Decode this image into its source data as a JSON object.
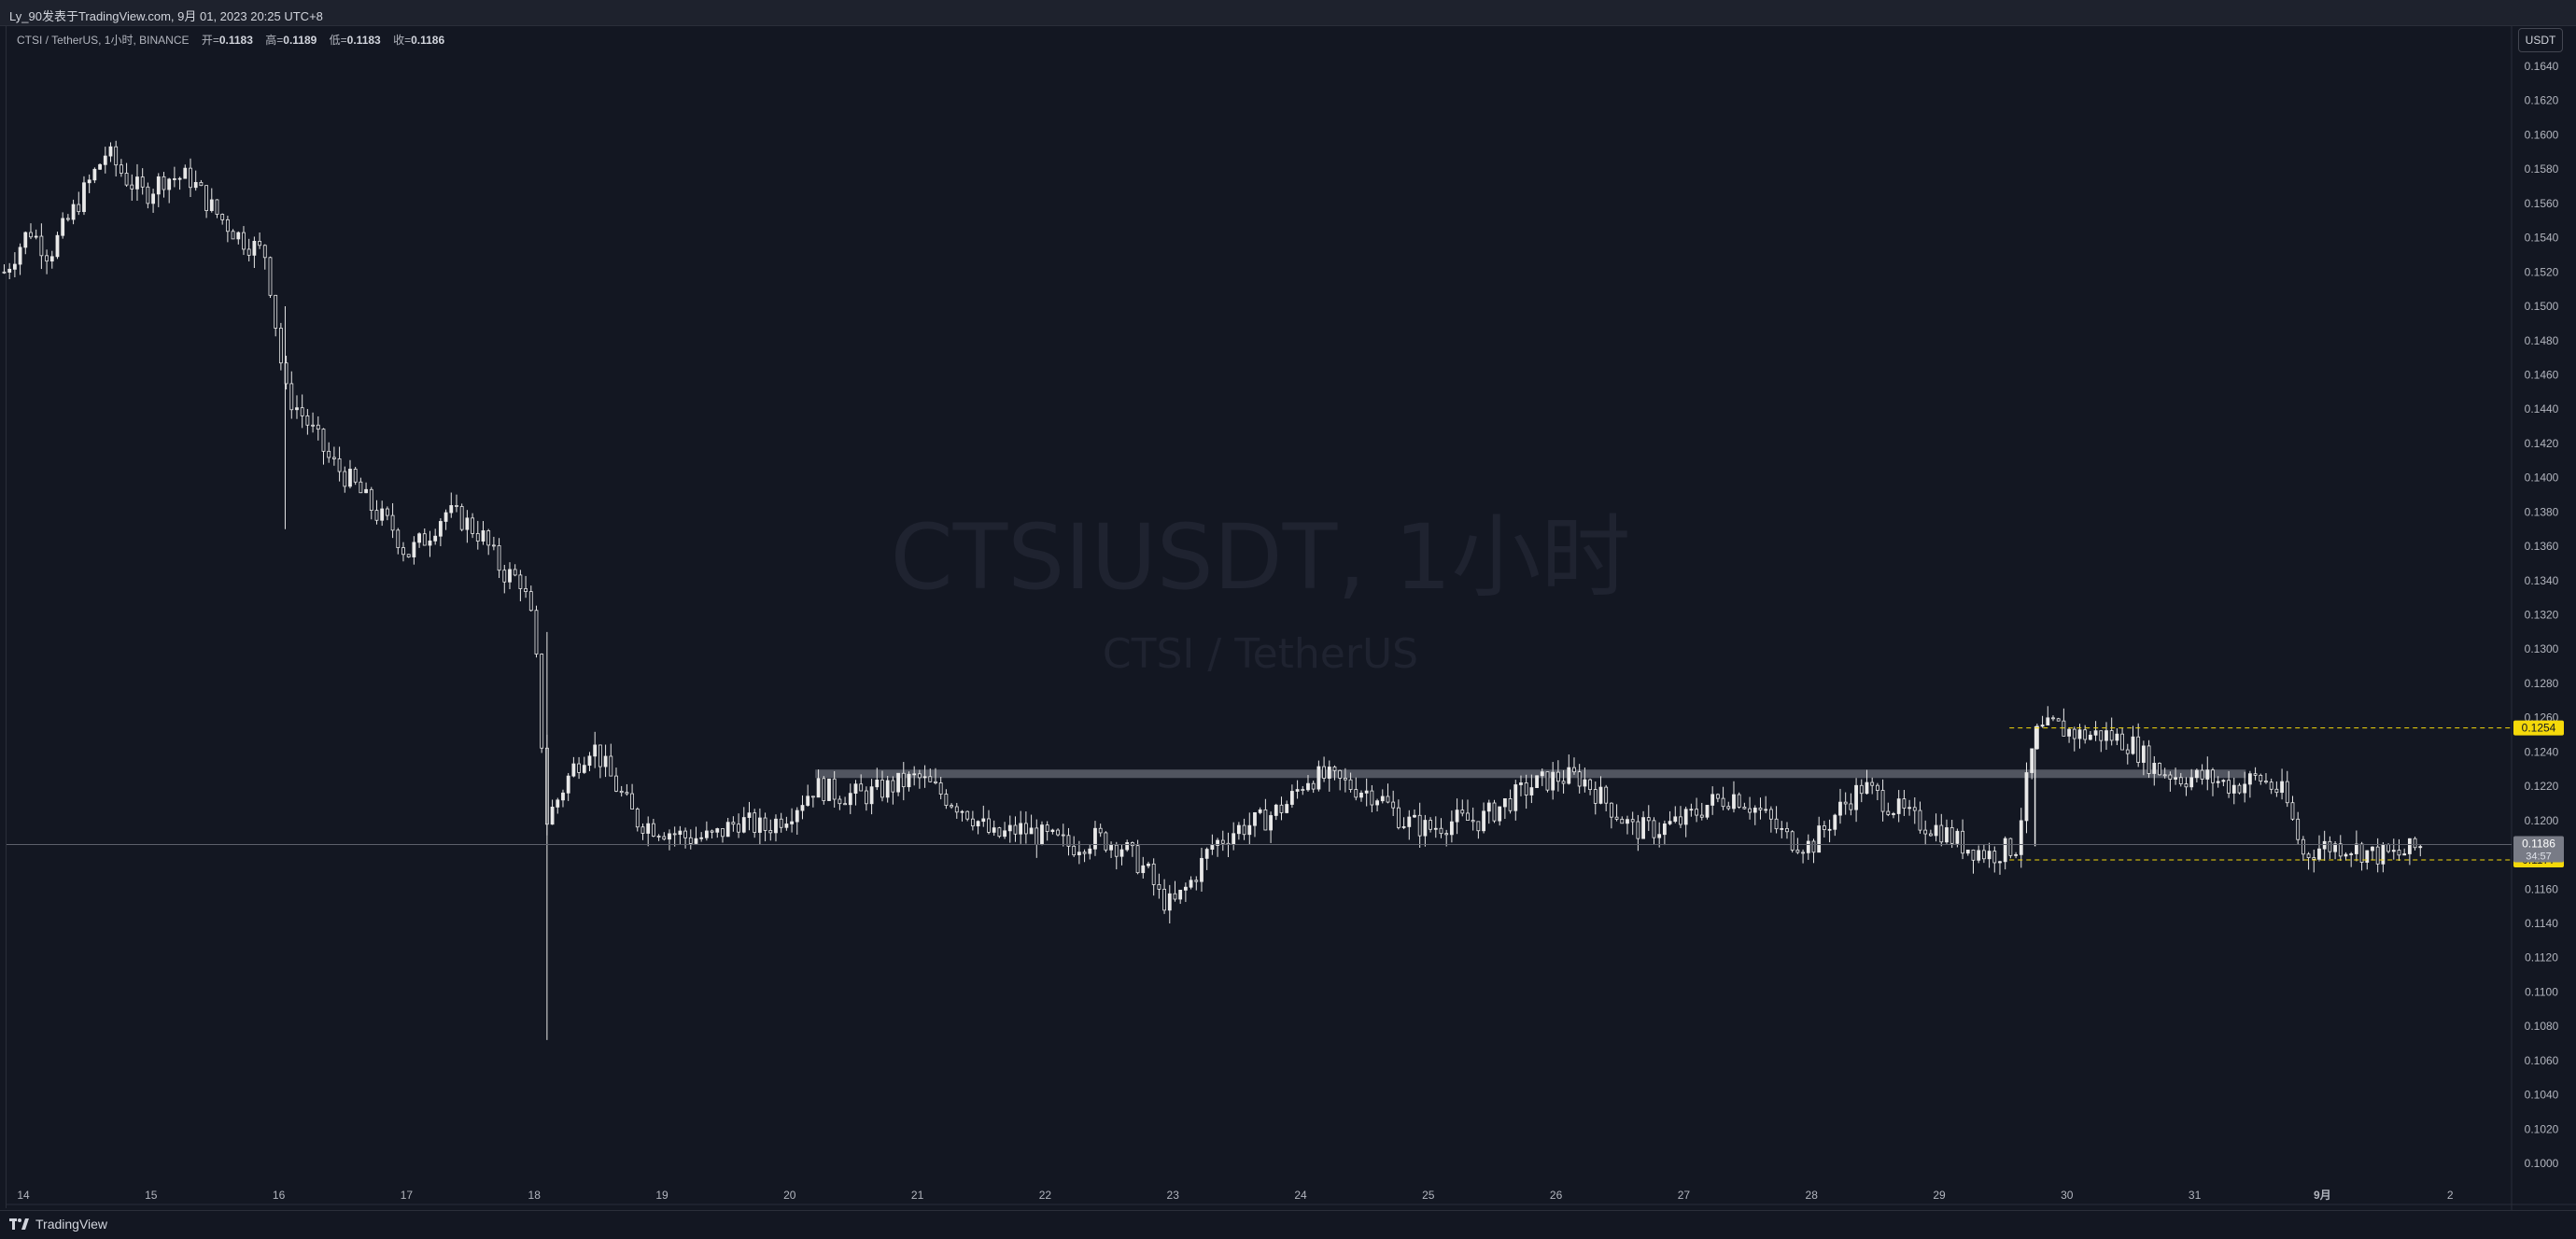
{
  "header": {
    "publish_info": "Ly_90发表于TradingView.com, 9月 01, 2023 20:25 UTC+8"
  },
  "legend": {
    "symbol": "CTSI / TetherUS, 1小时, BINANCE",
    "open_label": "开=",
    "open": "0.1183",
    "high_label": "高=",
    "high": "0.1189",
    "low_label": "低=",
    "low": "0.1183",
    "close_label": "收=",
    "close": "0.1186"
  },
  "currency_button": "USDT",
  "watermark": {
    "title": "CTSIUSDT, 1小时",
    "subtitle": "CTSI / TetherUS"
  },
  "footer": {
    "brand": "TradingView"
  },
  "colors": {
    "background": "#131722",
    "candle": "#e8e8e8",
    "level_line": "#f5d90a",
    "resistance_band": "#5d606b"
  },
  "chart_data": {
    "type": "candlestick",
    "timeframe": "1h",
    "ylim": [
      0.099,
      0.165
    ],
    "y_ticks": [
      "0.1640",
      "0.1620",
      "0.1600",
      "0.1580",
      "0.1560",
      "0.1540",
      "0.1520",
      "0.1500",
      "0.1480",
      "0.1460",
      "0.1440",
      "0.1420",
      "0.1400",
      "0.1380",
      "0.1360",
      "0.1340",
      "0.1320",
      "0.1300",
      "0.1280",
      "0.1260",
      "0.1240",
      "0.1220",
      "0.1200",
      "0.1180",
      "0.1160",
      "0.1140",
      "0.1120",
      "0.1100",
      "0.1080",
      "0.1060",
      "0.1040",
      "0.1020",
      "0.1000"
    ],
    "x_ticks": [
      "14",
      "15",
      "16",
      "17",
      "18",
      "19",
      "20",
      "21",
      "22",
      "23",
      "24",
      "25",
      "26",
      "27",
      "28",
      "29",
      "30",
      "31",
      "9月",
      "2"
    ],
    "x_tick_day_index": [
      0,
      1,
      2,
      3,
      4,
      5,
      6,
      7,
      8,
      9,
      10,
      11,
      12,
      13,
      14,
      15,
      16,
      17,
      18,
      19
    ],
    "day_start": 13.85,
    "day_end": 19.05,
    "price_points": [
      [
        13.85,
        0.152
      ],
      [
        14.05,
        0.1545
      ],
      [
        14.2,
        0.153
      ],
      [
        14.35,
        0.155
      ],
      [
        14.5,
        0.157
      ],
      [
        14.65,
        0.159
      ],
      [
        14.8,
        0.1575
      ],
      [
        14.95,
        0.1565
      ],
      [
        15.1,
        0.1575
      ],
      [
        15.3,
        0.1575
      ],
      [
        15.5,
        0.1555
      ],
      [
        15.7,
        0.154
      ],
      [
        15.9,
        0.153
      ],
      [
        16.05,
        0.145
      ],
      [
        16.2,
        0.1435
      ],
      [
        16.4,
        0.141
      ],
      [
        16.6,
        0.1395
      ],
      [
        16.75,
        0.138
      ],
      [
        16.9,
        0.137
      ],
      [
        17.0,
        0.1355
      ],
      [
        17.15,
        0.1365
      ],
      [
        17.3,
        0.138
      ],
      [
        17.45,
        0.1375
      ],
      [
        17.6,
        0.1365
      ],
      [
        17.75,
        0.1345
      ],
      [
        17.9,
        0.134
      ],
      [
        18.0,
        0.131
      ],
      [
        18.1,
        0.12
      ],
      [
        18.3,
        0.123
      ],
      [
        18.45,
        0.1245
      ],
      [
        18.6,
        0.1225
      ],
      [
        18.8,
        0.12
      ],
      [
        19.0,
        0.1195
      ],
      [
        19.2,
        0.119
      ],
      [
        19.4,
        0.119
      ],
      [
        19.6,
        0.12
      ],
      [
        19.8,
        0.1195
      ],
      [
        20.0,
        0.1205
      ],
      [
        20.2,
        0.122
      ],
      [
        20.4,
        0.1215
      ],
      [
        20.6,
        0.1215
      ],
      [
        20.8,
        0.122
      ],
      [
        21.0,
        0.1225
      ],
      [
        21.2,
        0.1215
      ],
      [
        21.4,
        0.1205
      ],
      [
        21.6,
        0.119
      ],
      [
        21.8,
        0.1195
      ],
      [
        22.0,
        0.119
      ],
      [
        22.2,
        0.1185
      ],
      [
        22.4,
        0.119
      ],
      [
        22.6,
        0.1185
      ],
      [
        22.8,
        0.117
      ],
      [
        22.9,
        0.1155
      ],
      [
        23.0,
        0.115
      ],
      [
        23.15,
        0.1165
      ],
      [
        23.3,
        0.1185
      ],
      [
        23.5,
        0.1195
      ],
      [
        23.7,
        0.12
      ],
      [
        23.9,
        0.121
      ],
      [
        24.05,
        0.1225
      ],
      [
        24.2,
        0.1225
      ],
      [
        24.4,
        0.122
      ],
      [
        24.6,
        0.1215
      ],
      [
        24.8,
        0.12
      ],
      [
        25.0,
        0.1195
      ],
      [
        25.2,
        0.12
      ],
      [
        25.4,
        0.12
      ],
      [
        25.6,
        0.121
      ],
      [
        25.8,
        0.122
      ],
      [
        26.0,
        0.1225
      ],
      [
        26.2,
        0.1225
      ],
      [
        26.4,
        0.121
      ],
      [
        26.6,
        0.1195
      ],
      [
        26.8,
        0.1195
      ],
      [
        27.0,
        0.12
      ],
      [
        27.2,
        0.121
      ],
      [
        27.4,
        0.1215
      ],
      [
        27.6,
        0.1205
      ],
      [
        27.8,
        0.119
      ],
      [
        28.0,
        0.1185
      ],
      [
        28.2,
        0.1205
      ],
      [
        28.4,
        0.122
      ],
      [
        28.6,
        0.121
      ],
      [
        28.8,
        0.12
      ],
      [
        29.0,
        0.1195
      ],
      [
        29.2,
        0.1185
      ],
      [
        29.4,
        0.118
      ],
      [
        29.6,
        0.1185
      ],
      [
        29.75,
        0.125
      ],
      [
        29.9,
        0.1255
      ],
      [
        30.1,
        0.125
      ],
      [
        30.3,
        0.125
      ],
      [
        30.5,
        0.1245
      ],
      [
        30.7,
        0.123
      ],
      [
        30.9,
        0.1225
      ],
      [
        31.1,
        0.1225
      ],
      [
        31.3,
        0.122
      ],
      [
        31.5,
        0.1225
      ],
      [
        31.7,
        0.1215
      ],
      [
        31.85,
        0.118
      ],
      [
        32.0,
        0.1185
      ],
      [
        32.2,
        0.1185
      ],
      [
        32.4,
        0.118
      ],
      [
        32.6,
        0.118
      ],
      [
        32.8,
        0.1186
      ]
    ],
    "resistance_band": {
      "from_day": 20.2,
      "to_day": 31.4,
      "price": 0.1227,
      "thickness": 0.0005
    },
    "levels": [
      {
        "price": 0.1254,
        "label": "0.1254",
        "from_day": 29.55,
        "style": "dashed"
      },
      {
        "price": 0.1177,
        "label": "0.1177",
        "from_day": 29.55,
        "style": "dashed"
      }
    ],
    "current_price": {
      "price": 0.1186,
      "label": "0.1186",
      "countdown": "34:57"
    }
  }
}
